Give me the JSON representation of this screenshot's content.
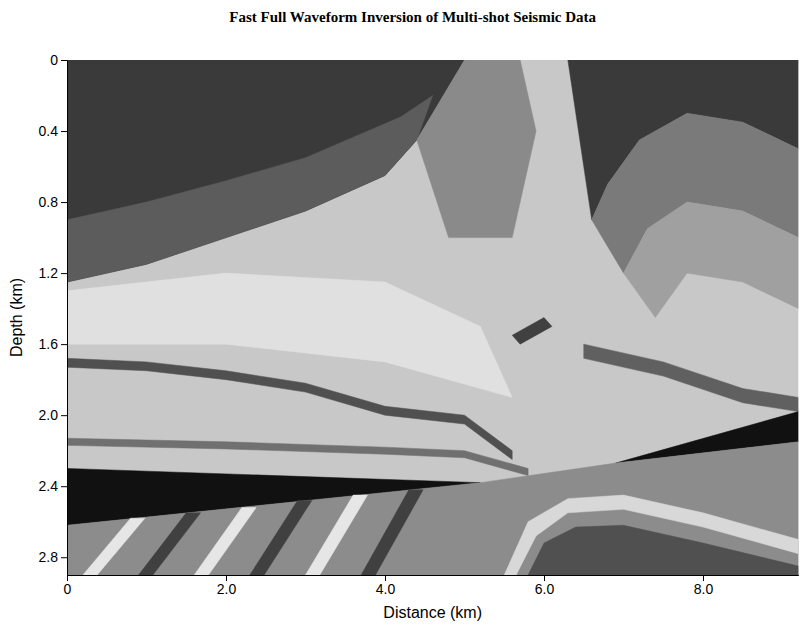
{
  "chart_data": {
    "type": "polygon",
    "title": "Fast Full Waveform Inversion of Multi-shot Seismic Data",
    "x_label": "Distance (km)",
    "y_label": "Depth (km)",
    "xlim": [
      0,
      9.2
    ],
    "ylim": [
      0,
      2.9
    ],
    "xticks": [
      0,
      {
        "value": 2,
        "label": "2.0"
      },
      {
        "value": 4,
        "label": "4.0"
      },
      {
        "value": 6,
        "label": "6.0"
      },
      {
        "value": 8,
        "label": "8.0"
      }
    ],
    "yticks": [
      0,
      0.4,
      0.8,
      1.2,
      1.6,
      {
        "value": 2,
        "label": "2.0"
      },
      2.4,
      2.8
    ],
    "grid": false,
    "regions": [
      {
        "color": "#c8c8c8",
        "x": [
          0,
          9.2,
          9.2,
          0
        ],
        "y": [
          0,
          0,
          2.9,
          2.9
        ]
      },
      {
        "color": "#e0e0e0",
        "x": [
          0,
          2,
          4,
          5.2,
          5.6,
          4,
          2,
          0
        ],
        "y": [
          1.3,
          1.2,
          1.25,
          1.5,
          1.9,
          1.7,
          1.6,
          1.6
        ]
      },
      {
        "color": "#3a3a3a",
        "x": [
          0,
          5.0,
          4.4,
          4,
          3,
          2,
          1,
          0
        ],
        "y": [
          0,
          0,
          0.45,
          0.65,
          0.85,
          1.0,
          1.15,
          1.25
        ]
      },
      {
        "color": "#5c5c5c",
        "x": [
          0,
          1,
          2,
          3,
          4.2,
          4.6,
          4.4,
          4,
          3,
          2,
          1,
          0
        ],
        "y": [
          0.9,
          0.8,
          0.68,
          0.55,
          0.32,
          0.2,
          0.45,
          0.65,
          0.85,
          1.0,
          1.15,
          1.25
        ]
      },
      {
        "color": "#8a8a8a",
        "x": [
          5.0,
          5.7,
          5.9,
          5.6,
          4.8,
          4.4
        ],
        "y": [
          0,
          0,
          0.4,
          1.0,
          1.0,
          0.45
        ]
      },
      {
        "color": "#3a3a3a",
        "x": [
          6.3,
          9.2,
          9.2,
          8.5,
          7.8,
          7.2,
          6.8,
          6.6
        ],
        "y": [
          0,
          0,
          0.5,
          0.35,
          0.3,
          0.45,
          0.7,
          0.9
        ]
      },
      {
        "color": "#7a7a7a",
        "x": [
          6.6,
          6.8,
          7.2,
          7.8,
          8.5,
          9.2,
          9.2,
          8.5,
          7.8,
          7.3,
          7.0
        ],
        "y": [
          0.9,
          0.7,
          0.45,
          0.3,
          0.35,
          0.5,
          1.0,
          0.85,
          0.8,
          0.95,
          1.2
        ]
      },
      {
        "color": "#a0a0a0",
        "x": [
          7.0,
          7.3,
          7.8,
          8.5,
          9.2,
          9.2,
          8.5,
          7.8,
          7.4
        ],
        "y": [
          1.2,
          0.95,
          0.8,
          0.85,
          1.0,
          1.4,
          1.25,
          1.2,
          1.45
        ]
      },
      {
        "color": "#505050",
        "x": [
          0,
          1,
          2,
          3,
          4,
          5,
          5.6,
          5.6,
          5,
          4,
          3,
          2,
          1,
          0
        ],
        "y": [
          1.68,
          1.7,
          1.75,
          1.82,
          1.95,
          2.0,
          2.2,
          2.25,
          2.05,
          2.0,
          1.87,
          1.8,
          1.75,
          1.73
        ]
      },
      {
        "color": "#707070",
        "x": [
          0,
          2,
          4,
          5,
          5.8,
          5.8,
          5,
          4,
          2,
          0
        ],
        "y": [
          2.13,
          2.15,
          2.18,
          2.2,
          2.3,
          2.34,
          2.24,
          2.22,
          2.19,
          2.17
        ]
      },
      {
        "color": "#404040",
        "x": [
          5.6,
          6.0,
          6.1,
          5.7
        ],
        "y": [
          1.55,
          1.45,
          1.5,
          1.6
        ]
      },
      {
        "color": "#606060",
        "x": [
          6.5,
          7.5,
          8.5,
          9.2,
          9.2,
          8.5,
          7.5,
          6.5
        ],
        "y": [
          1.6,
          1.7,
          1.85,
          1.9,
          1.98,
          1.93,
          1.78,
          1.68
        ]
      },
      {
        "color": "#111111",
        "x": [
          0,
          5.2,
          0
        ],
        "y": [
          2.3,
          2.38,
          2.62
        ]
      },
      {
        "color": "#111111",
        "x": [
          6.9,
          9.2,
          9.2
        ],
        "y": [
          2.27,
          1.98,
          2.15
        ]
      },
      {
        "color": "#8c8c8c",
        "x": [
          0,
          5.2,
          6.9,
          9.2,
          9.2,
          0
        ],
        "y": [
          2.62,
          2.38,
          2.27,
          2.15,
          2.9,
          2.9
        ]
      },
      {
        "color": "#e6e6e6",
        "x": [
          0.2,
          0.38,
          0.98,
          0.8
        ],
        "y": [
          2.9,
          2.9,
          2.58,
          2.58
        ]
      },
      {
        "color": "#404040",
        "x": [
          0.9,
          1.08,
          1.68,
          1.5
        ],
        "y": [
          2.9,
          2.9,
          2.55,
          2.55
        ]
      },
      {
        "color": "#e6e6e6",
        "x": [
          1.6,
          1.78,
          2.38,
          2.2
        ],
        "y": [
          2.9,
          2.9,
          2.52,
          2.52
        ]
      },
      {
        "color": "#404040",
        "x": [
          2.3,
          2.48,
          3.08,
          2.9
        ],
        "y": [
          2.9,
          2.9,
          2.48,
          2.48
        ]
      },
      {
        "color": "#e6e6e6",
        "x": [
          3.0,
          3.18,
          3.78,
          3.6
        ],
        "y": [
          2.9,
          2.9,
          2.45,
          2.45
        ]
      },
      {
        "color": "#404040",
        "x": [
          3.7,
          3.88,
          4.48,
          4.3
        ],
        "y": [
          2.9,
          2.9,
          2.42,
          2.42
        ]
      },
      {
        "color": "#d8d8d8",
        "x": [
          5.5,
          5.8,
          6.3,
          7.0,
          8.0,
          9.2,
          9.2,
          8.0,
          7.0,
          6.3,
          5.9,
          5.65
        ],
        "y": [
          2.9,
          2.6,
          2.47,
          2.45,
          2.55,
          2.7,
          2.78,
          2.63,
          2.53,
          2.55,
          2.68,
          2.9
        ]
      },
      {
        "color": "#505050",
        "x": [
          5.8,
          6.0,
          6.4,
          7.0,
          8.0,
          9.2,
          9.2
        ],
        "y": [
          2.9,
          2.72,
          2.63,
          2.62,
          2.72,
          2.85,
          2.9
        ]
      }
    ]
  }
}
